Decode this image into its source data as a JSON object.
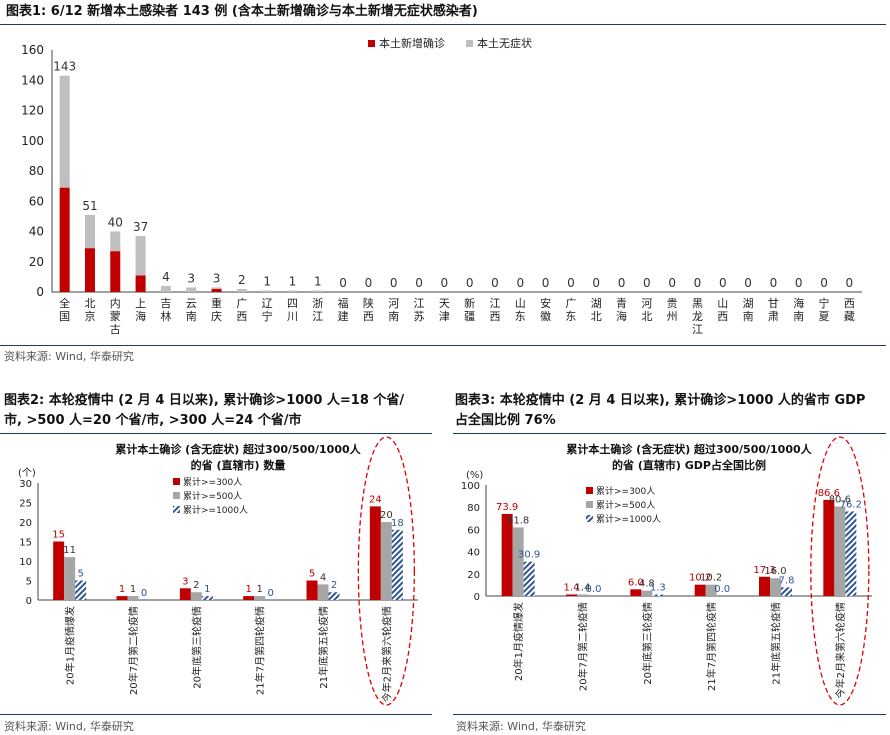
{
  "colors": {
    "confirmed": "#c00000",
    "asymptomatic": "#bfbfbf",
    "c300": "#c00000",
    "c500": "#a6a6a6",
    "c1000": "#2f5597",
    "rule": "#1f3864",
    "circle": "#e00000"
  },
  "fig1": {
    "title": "图表1:  6/12 新增本土感染者 143 例 (含本土新增确诊与本土新增无症状感染者)",
    "source": "资料来源: Wind, 华泰研究",
    "chart_data": {
      "type": "bar",
      "stacked": true,
      "categories": [
        "全国",
        "北京",
        "内蒙古",
        "上海",
        "吉林",
        "云南",
        "重庆",
        "广西",
        "辽宁",
        "四川",
        "浙江",
        "福建",
        "陕西",
        "河南",
        "江苏",
        "天津",
        "新疆",
        "江西",
        "山东",
        "安徽",
        "广东",
        "湖北",
        "青海",
        "河北",
        "贵州",
        "黑龙江",
        "山西",
        "湖南",
        "甘肃",
        "海南",
        "宁夏",
        "西藏"
      ],
      "series": [
        {
          "name": "本土新增确诊",
          "values": [
            69,
            29,
            27,
            11,
            0,
            0,
            2,
            0,
            0,
            0,
            0,
            0,
            0,
            0,
            0,
            0,
            0,
            0,
            0,
            0,
            0,
            0,
            0,
            0,
            0,
            0,
            0,
            0,
            0,
            0,
            0,
            0
          ]
        },
        {
          "name": "本土无症状",
          "values": [
            74,
            22,
            13,
            26,
            4,
            3,
            1,
            2,
            1,
            1,
            1,
            0,
            0,
            0,
            0,
            0,
            0,
            0,
            0,
            0,
            0,
            0,
            0,
            0,
            0,
            0,
            0,
            0,
            0,
            0,
            0,
            0
          ]
        }
      ],
      "totals": [
        143,
        51,
        40,
        37,
        4,
        3,
        3,
        2,
        1,
        1,
        1,
        0,
        0,
        0,
        0,
        0,
        0,
        0,
        0,
        0,
        0,
        0,
        0,
        0,
        0,
        0,
        0,
        0,
        0,
        0,
        0,
        0
      ],
      "yticks": [
        0,
        20,
        40,
        60,
        80,
        100,
        120,
        140,
        160
      ],
      "ylim": [
        0,
        160
      ],
      "legend": "top-right"
    }
  },
  "fig2": {
    "title_line1": "图表2:  本轮疫情中 (2 月 4 日以来), 累计确诊>1000 人=18 个省/",
    "title_line2": "市, >500 人=20 个省/市, >300 人=24 个省/市",
    "source": "资料来源: Wind, 华泰研究",
    "chart_data": {
      "type": "bar",
      "title_line1": "累计本土确诊 (含无症状) 超过300/500/1000人",
      "title_line2": "的省 (直辖市) 数量",
      "unit": "(个)",
      "categories": [
        "20年1月疫情爆发",
        "20年7月第二轮疫情",
        "20年底第三轮疫情",
        "21年7月第四轮疫情",
        "21年底第五轮疫情",
        "今年2月来第六轮疫情"
      ],
      "series": [
        {
          "name": "累计>=300人",
          "values": [
            15,
            1,
            3,
            1,
            5,
            24
          ]
        },
        {
          "name": "累计>=500人",
          "values": [
            11,
            1,
            2,
            1,
            4,
            20
          ]
        },
        {
          "name": "累计>=1000人",
          "values": [
            5,
            0,
            1,
            0,
            2,
            18
          ]
        }
      ],
      "labels": [
        [
          "15",
          "11",
          "5"
        ],
        [
          "1",
          "1",
          "0"
        ],
        [
          "3",
          "2",
          "1"
        ],
        [
          "1",
          "1",
          "0"
        ],
        [
          "5",
          "4",
          "2"
        ],
        [
          "24",
          "20",
          "18"
        ]
      ],
      "yticks": [
        0,
        5,
        10,
        15,
        20,
        25,
        30
      ],
      "ylim": [
        0,
        30
      ],
      "legend": "top-left"
    }
  },
  "fig3": {
    "title_line1": "图表3:  本轮疫情中 (2 月 4 日以来), 累计确诊>1000 人的省市 GDP",
    "title_line2": "占全国比例 76%",
    "source": "资料来源: Wind, 华泰研究",
    "chart_data": {
      "type": "bar",
      "title_line1": "累计本土确诊 (含无症状) 超过300/500/1000人",
      "title_line2": "的省 (直辖市) GDP占全国比例",
      "unit": "(%)",
      "categories": [
        "20年1月疫情爆发",
        "20年7月第二轮疫情",
        "20年底第三轮疫情",
        "21年7月第四轮疫情",
        "21年底第五轮疫情",
        "今年2月来第六轮疫情"
      ],
      "series": [
        {
          "name": "累计>=300人",
          "values": [
            73.9,
            1.4,
            6.0,
            10.2,
            17.3,
            86.6
          ]
        },
        {
          "name": "累计>=500人",
          "values": [
            61.8,
            1.4,
            4.8,
            10.2,
            16.0,
            80.6
          ]
        },
        {
          "name": "累计>=1000人",
          "values": [
            30.9,
            0.0,
            1.3,
            0.0,
            7.8,
            76.2
          ]
        }
      ],
      "labels": [
        [
          "73.9",
          "61.8",
          "30.9"
        ],
        [
          "1.4",
          "1.4",
          "0.0"
        ],
        [
          "6.0",
          "4.8",
          "1.3"
        ],
        [
          "10.2",
          "10.2",
          "0.0"
        ],
        [
          "17.3",
          "16.0",
          "7.8"
        ],
        [
          "86.6",
          "80.6",
          "76.2"
        ]
      ],
      "yticks": [
        0,
        20,
        40,
        60,
        80,
        100
      ],
      "ylim": [
        0,
        100
      ],
      "legend": "top-left"
    }
  }
}
